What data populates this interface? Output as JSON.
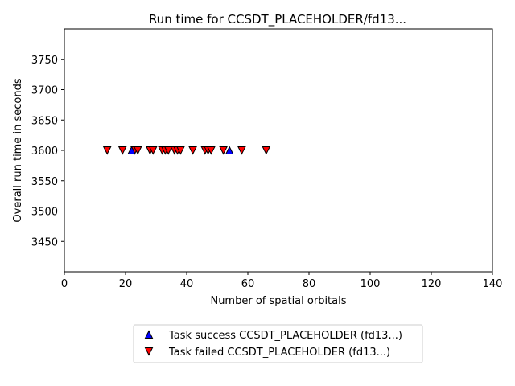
{
  "chart_data": {
    "type": "scatter",
    "title": "Run time for CCSDT_PLACEHOLDER/fd13...",
    "xlabel": "Number of spatial orbitals",
    "ylabel": "Overall run time in seconds",
    "xlim": [
      0,
      140
    ],
    "ylim": [
      3400,
      3800
    ],
    "xticks": [
      0,
      20,
      40,
      60,
      80,
      100,
      120,
      140
    ],
    "yticks": [
      3450,
      3500,
      3550,
      3600,
      3650,
      3700,
      3750
    ],
    "grid": false,
    "legend_position": "bottom-center",
    "series": [
      {
        "name": "Task success CCSDT_PLACEHOLDER (fd13...)",
        "marker": "triangle-up",
        "color": "#0000ff",
        "points": [
          {
            "x": 22,
            "y": 3600
          },
          {
            "x": 54,
            "y": 3600
          }
        ]
      },
      {
        "name": "Task failed CCSDT_PLACEHOLDER (fd13...)",
        "marker": "triangle-down",
        "color": "#ff0000",
        "points": [
          {
            "x": 14,
            "y": 3600
          },
          {
            "x": 19,
            "y": 3600
          },
          {
            "x": 23,
            "y": 3600
          },
          {
            "x": 24,
            "y": 3600
          },
          {
            "x": 28,
            "y": 3600
          },
          {
            "x": 29,
            "y": 3600
          },
          {
            "x": 32,
            "y": 3600
          },
          {
            "x": 33,
            "y": 3600
          },
          {
            "x": 34,
            "y": 3600
          },
          {
            "x": 36,
            "y": 3600
          },
          {
            "x": 37,
            "y": 3600
          },
          {
            "x": 38,
            "y": 3600
          },
          {
            "x": 42,
            "y": 3600
          },
          {
            "x": 46,
            "y": 3600
          },
          {
            "x": 47,
            "y": 3600
          },
          {
            "x": 48,
            "y": 3600
          },
          {
            "x": 52,
            "y": 3600
          },
          {
            "x": 58,
            "y": 3600
          },
          {
            "x": 66,
            "y": 3600
          }
        ]
      }
    ]
  }
}
